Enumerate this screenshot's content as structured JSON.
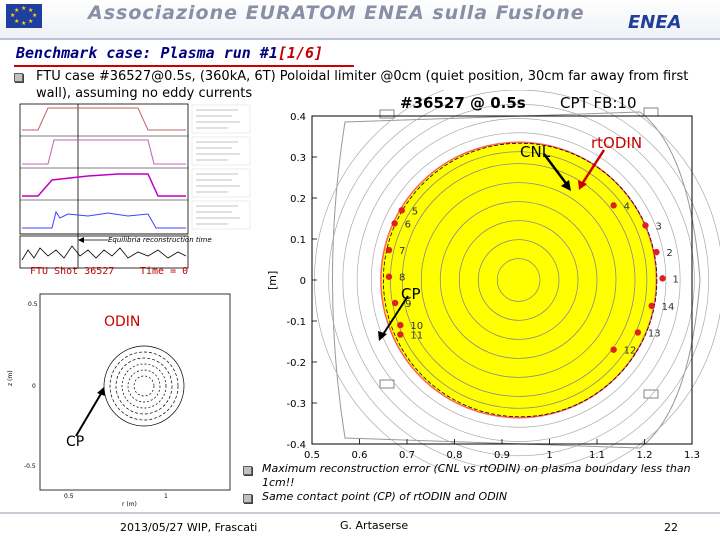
{
  "header": {
    "association": "Associazione EURATOM ENEA sulla Fusione",
    "logo": "ENEA"
  },
  "slide": {
    "title_prefix": "Benchmark case: Plasma run #1",
    "title_suffix": "[1/6]",
    "description": "FTU case #36527@0.5s, (360kA, 6T) Poloidal limiter @0cm (quiet position, 30cm far away from first wall), assuming no eddy currents",
    "notes": [
      "Maximum reconstruction error (CNL vs rtODIN) on plasma boundary less than 1cm!!",
      "Same contact point (CP) of rtODIN and ODIN"
    ]
  },
  "traces_panel": {
    "equilibrium_label": "Equilibria reconstruction time",
    "shot_label": "FTU Shot 36527",
    "time_label": "Time = 0"
  },
  "odin_panel": {
    "label": "ODIN",
    "cp_label": "CP",
    "ylabel": "z (m)",
    "xlabel": "r (m)",
    "yticks": [
      "0.5",
      "0",
      "-0.5"
    ],
    "xticks": [
      "0.5",
      "1"
    ]
  },
  "main_plot": {
    "title": "#36527 @ 0.5s",
    "subtitle": "CPT FB:10",
    "ylabel": "[m]",
    "cnl_label": "CNL",
    "rtodin_label": "rtODIN",
    "cp_label": "CP"
  },
  "chart_data": {
    "type": "scatter",
    "title": "#36527 @ 0.5s",
    "subtitle": "CPT FB:10",
    "ylabel": "[m]",
    "xlim": [
      0.5,
      1.3
    ],
    "ylim": [
      -0.4,
      0.4
    ],
    "xticks": [
      "0.5",
      "0.6",
      "0.7",
      "0.8",
      "0.9",
      "1",
      "1.1",
      "1.2",
      "1.3"
    ],
    "yticks": [
      "0.4",
      "0.3",
      "0.2",
      "0.1",
      "0",
      "-0.1",
      "-0.2",
      "-0.3",
      "-0.4"
    ],
    "boundary": {
      "center_r": 0.935,
      "center_z": 0.0,
      "radius": 0.29
    },
    "flux_surfaces": [
      0.045,
      0.085,
      0.125,
      0.165,
      0.205,
      0.245,
      0.27
    ],
    "outer_contours": [
      0.31,
      0.34,
      0.37,
      0.4,
      0.43
    ],
    "probes": [
      {
        "label": "1",
        "r": 1.238,
        "z": 0.004
      },
      {
        "label": "2",
        "r": 1.225,
        "z": 0.068
      },
      {
        "label": "3",
        "r": 1.202,
        "z": 0.133
      },
      {
        "label": "4",
        "r": 1.135,
        "z": 0.182
      },
      {
        "label": "5",
        "r": 0.689,
        "z": 0.17
      },
      {
        "label": "6",
        "r": 0.674,
        "z": 0.138
      },
      {
        "label": "7",
        "r": 0.662,
        "z": 0.073
      },
      {
        "label": "8",
        "r": 0.662,
        "z": 0.008
      },
      {
        "label": "9",
        "r": 0.675,
        "z": -0.056
      },
      {
        "label": "10",
        "r": 0.686,
        "z": -0.11
      },
      {
        "label": "11",
        "r": 0.686,
        "z": -0.133
      },
      {
        "label": "12",
        "r": 1.135,
        "z": -0.17
      },
      {
        "label": "13",
        "r": 1.186,
        "z": -0.128
      },
      {
        "label": "14",
        "r": 1.215,
        "z": -0.063
      }
    ]
  },
  "footer": {
    "date_place": "2013/05/27   WIP, Frascati",
    "author": "G. Artaserse",
    "page": "22"
  }
}
